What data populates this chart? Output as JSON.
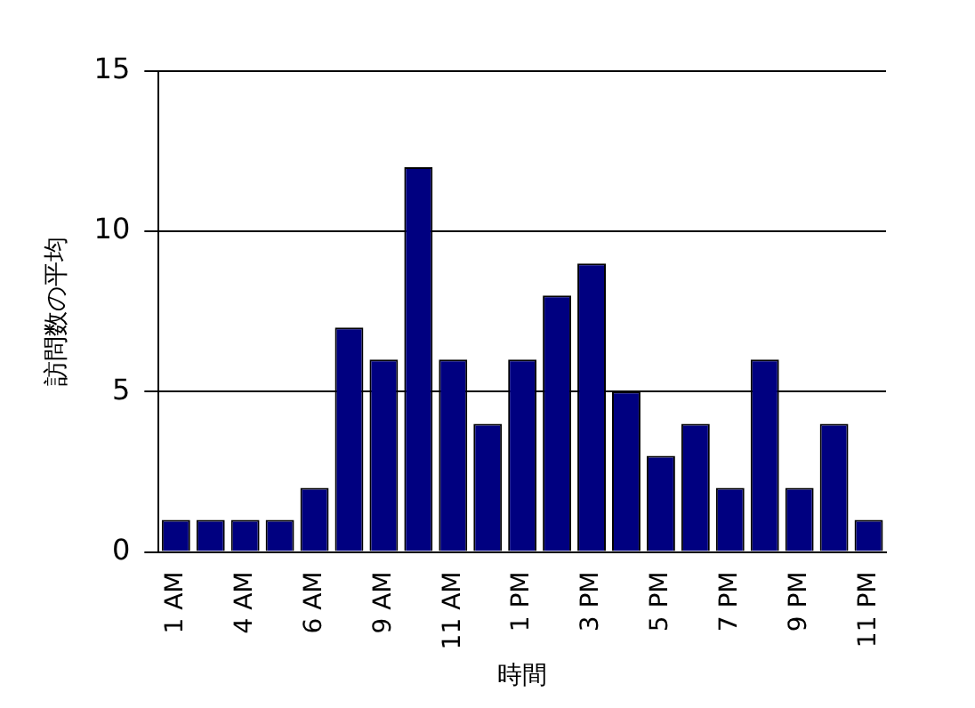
{
  "chart_data": {
    "type": "bar",
    "xlabel": "時間",
    "ylabel": "訪問数の平均",
    "categories": [
      "1 AM",
      null,
      "4 AM",
      null,
      "6 AM",
      null,
      "9 AM",
      null,
      "11 AM",
      null,
      "1 PM",
      null,
      "3 PM",
      null,
      "5 PM",
      null,
      "7 PM",
      null,
      "9 PM",
      null,
      "11 PM"
    ],
    "values": [
      1,
      1,
      1,
      1,
      2,
      7,
      6,
      12,
      6,
      4,
      6,
      8,
      9,
      5,
      3,
      4,
      2,
      6,
      2,
      4,
      1
    ],
    "color": "#000080",
    "ylim": [
      0,
      15
    ],
    "yticks": [
      0,
      5,
      10,
      15
    ],
    "grid": "y",
    "legend": false
  }
}
